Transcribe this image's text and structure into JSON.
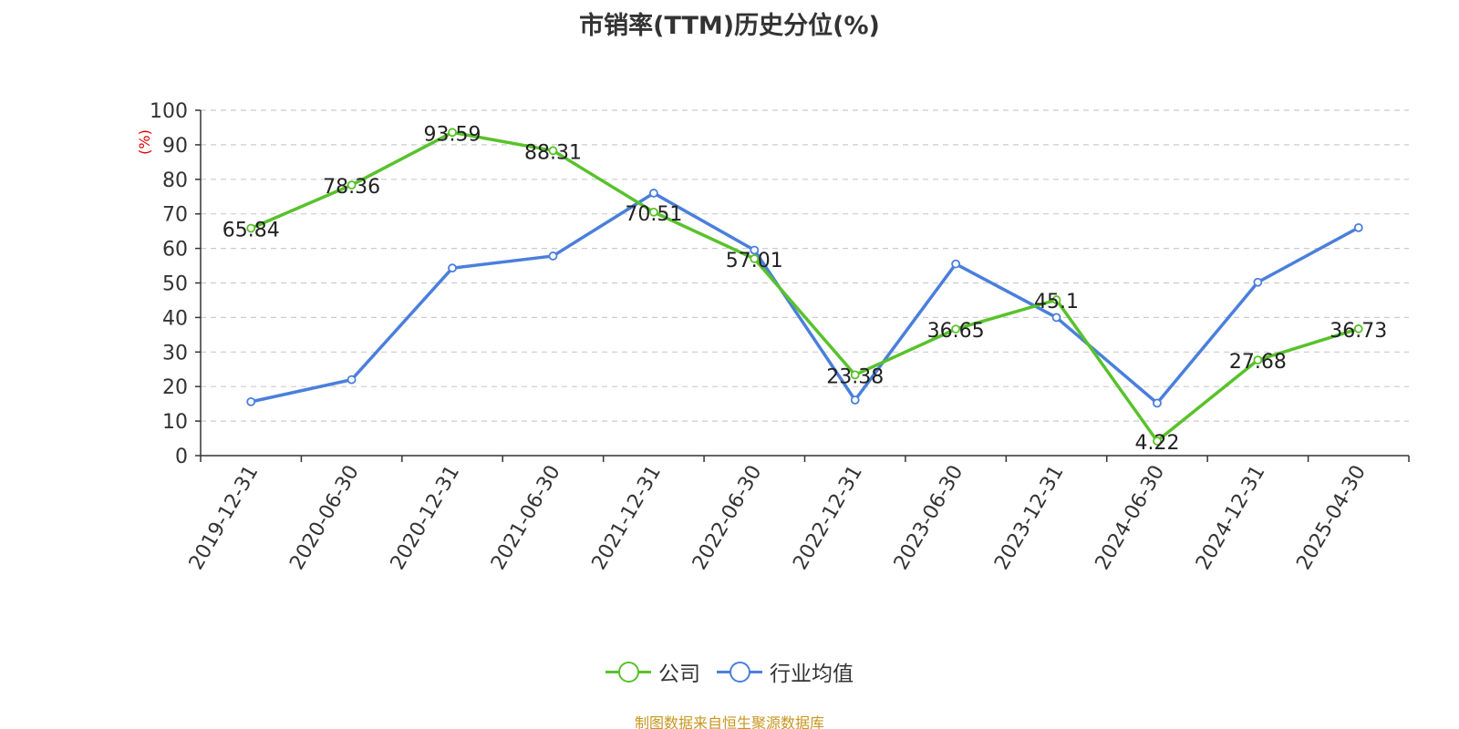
{
  "chart_data": {
    "type": "line",
    "title": "市销率(TTM)历史分位(%)",
    "ylabel": "(%)",
    "ylim": [
      0,
      100
    ],
    "yticks": [
      0,
      10,
      20,
      30,
      40,
      50,
      60,
      70,
      80,
      90,
      100
    ],
    "grid": true,
    "legend_position": "bottom",
    "categories": [
      "2019-12-31",
      "2020-06-30",
      "2020-12-31",
      "2021-06-30",
      "2021-12-31",
      "2022-06-30",
      "2022-12-31",
      "2023-06-30",
      "2023-12-31",
      "2024-06-30",
      "2024-12-31",
      "2025-04-30"
    ],
    "series": [
      {
        "name": "公司",
        "color": "#58c22b",
        "values": [
          65.84,
          78.36,
          93.59,
          88.31,
          70.51,
          57.01,
          23.38,
          36.65,
          45.1,
          4.22,
          27.68,
          36.73
        ],
        "labels": [
          "65.84",
          "78.36",
          "93.59",
          "88.31",
          "70.51",
          "57.01",
          "23.38",
          "36.65",
          "45.1",
          "4.22",
          "27.68",
          "36.73"
        ]
      },
      {
        "name": "行业均值",
        "color": "#4a7fdc",
        "values": [
          15.6,
          22.0,
          54.3,
          57.8,
          76.0,
          59.5,
          16.1,
          55.5,
          40.0,
          15.2,
          50.2,
          66.0
        ]
      }
    ],
    "source_note": "制图数据来自恒生聚源数据库"
  }
}
